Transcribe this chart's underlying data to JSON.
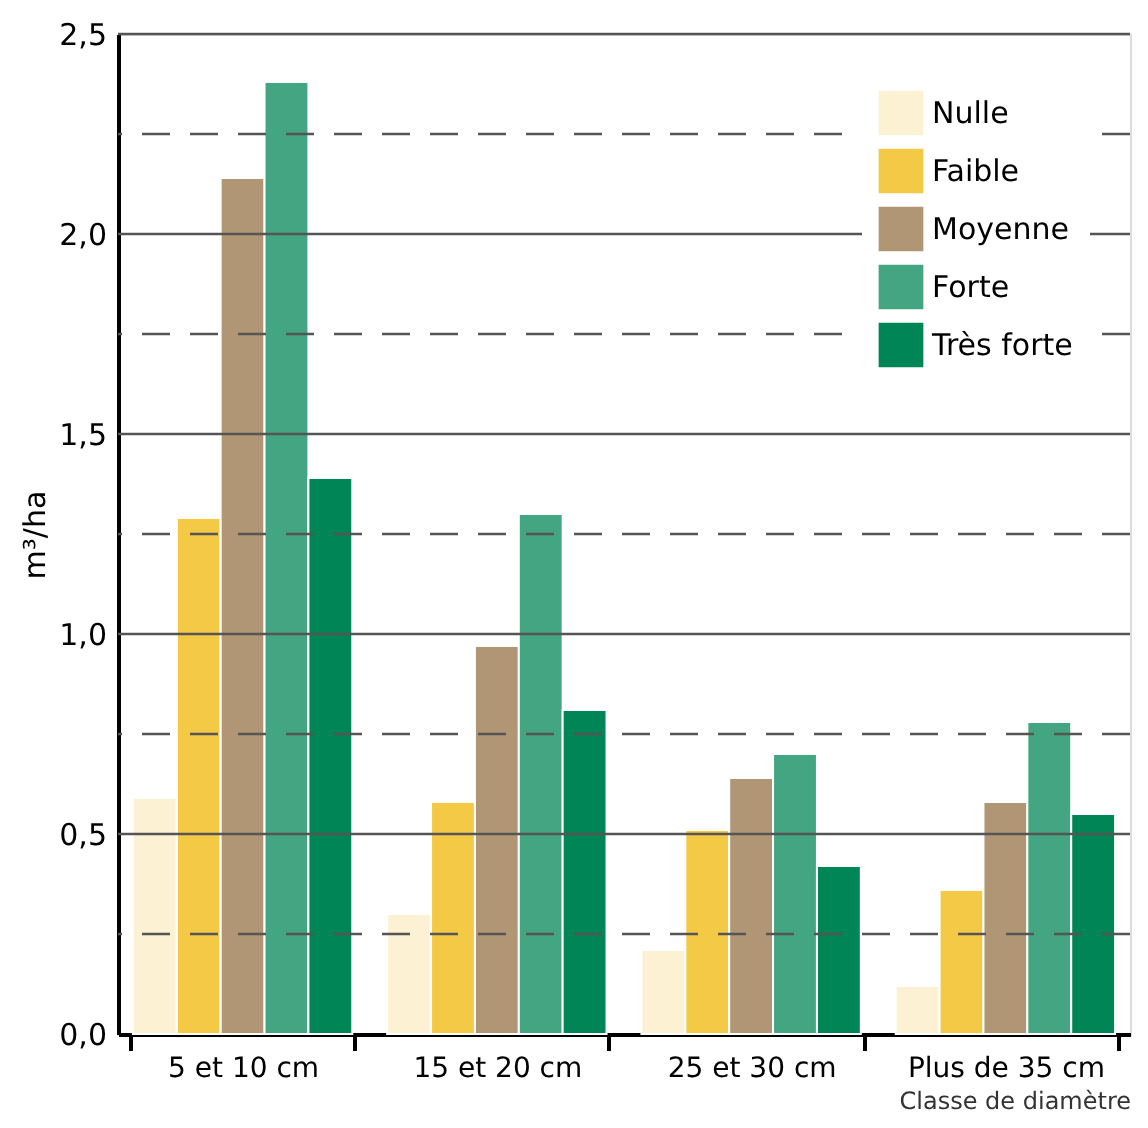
{
  "chart_data": {
    "type": "bar",
    "categories": [
      "5 et 10 cm",
      "15 et 20 cm",
      "25 et 30 cm",
      "Plus de 35 cm"
    ],
    "series": [
      {
        "name": "Nulle",
        "color": "#fdf1d4",
        "values": [
          0.59,
          0.3,
          0.21,
          0.12
        ]
      },
      {
        "name": "Faible",
        "color": "#f4c945",
        "values": [
          1.29,
          0.58,
          0.51,
          0.36
        ]
      },
      {
        "name": "Moyenne",
        "color": "#b09674",
        "values": [
          2.14,
          0.97,
          0.64,
          0.58
        ]
      },
      {
        "name": "Forte",
        "color": "#43a582",
        "values": [
          2.38,
          1.3,
          0.7,
          0.78
        ]
      },
      {
        "name": "Très forte",
        "color": "#008556",
        "values": [
          1.39,
          0.81,
          0.42,
          0.55
        ]
      }
    ],
    "xlabel": "Classe de diamètre",
    "ylabel": "m³/ha",
    "ylim": [
      0,
      2.5
    ],
    "yticks": [
      {
        "value": 0,
        "label": "0,0"
      },
      {
        "value": 0.25,
        "label": null
      },
      {
        "value": 0.5,
        "label": "0,5"
      },
      {
        "value": 0.75,
        "label": null
      },
      {
        "value": 1.0,
        "label": "1,0"
      },
      {
        "value": 1.25,
        "label": null
      },
      {
        "value": 1.5,
        "label": "1,5"
      },
      {
        "value": 1.75,
        "label": null
      },
      {
        "value": 2.0,
        "label": "2,0"
      },
      {
        "value": 2.25,
        "label": null
      },
      {
        "value": 2.5,
        "label": "2,5"
      }
    ],
    "grid": "y",
    "legend": "top right"
  }
}
